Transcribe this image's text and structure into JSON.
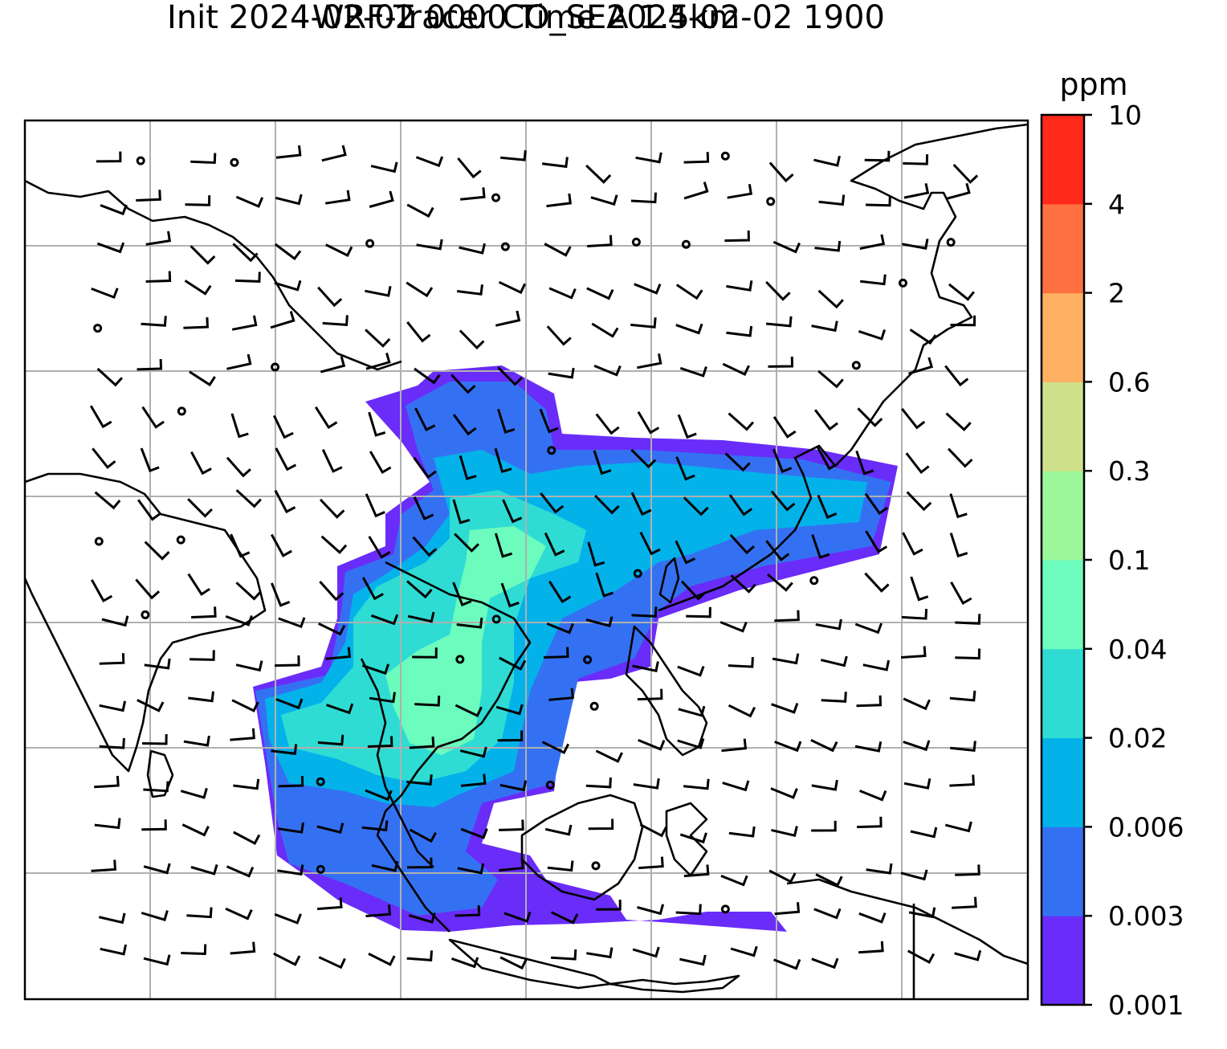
{
  "chart_data": {
    "type": "heatmap",
    "title": "WRF-Tracer CO_SEA 1.5km",
    "subtitle": "Init 2024-02-02 0000 Time 2024-02-02 1900",
    "colorbar": {
      "unit": "ppm",
      "levels": [
        "0.001",
        "0.003",
        "0.006",
        "0.02",
        "0.04",
        "0.1",
        "0.3",
        "0.6",
        "2",
        "4",
        "10"
      ],
      "colors": [
        "#6a2cf9",
        "#3471f2",
        "#04b2ea",
        "#2fdcd4",
        "#6cfcbe",
        "#9bf79a",
        "#cfe18a",
        "#ffb062",
        "#ff7040",
        "#ff2a1a"
      ]
    },
    "grid": true,
    "map_background": "#ffffff",
    "coastline_color": "#000000"
  }
}
